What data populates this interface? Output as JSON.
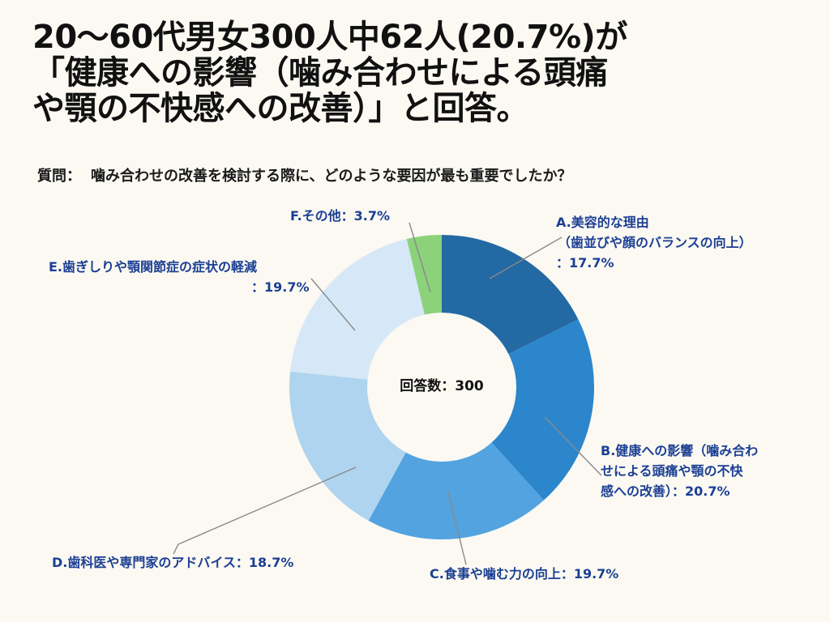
{
  "headline": {
    "line1": "20〜60代男女300人中62人(20.7%)が",
    "line2": "「健康への影響（噛み合わせによる頭痛",
    "line3": "や顎の不快感への改善）」と回答。"
  },
  "question": {
    "prefix": "質問：",
    "text": "噛み合わせの改善を検討する際に、どのような要因が最も重要でしたか？"
  },
  "chart_data": {
    "type": "pie",
    "donut": true,
    "center_label": "回答数：300",
    "total_responses": 300,
    "slices": [
      {
        "key": "A",
        "label_lines": [
          "A.美容的な理由",
          "（歯並びや顔のバランスの向上）",
          "：17.7%"
        ],
        "value": 17.7,
        "color": "#2369a4"
      },
      {
        "key": "B",
        "label_lines": [
          "B.健康への影響（噛み合わ",
          "せによる頭痛や顎の不快",
          "感への改善）：20.7%"
        ],
        "value": 20.7,
        "color": "#2b86cb"
      },
      {
        "key": "C",
        "label_lines": [
          "C.食事や噛む力の向上：19.7%"
        ],
        "value": 19.7,
        "color": "#52a3e0"
      },
      {
        "key": "D",
        "label_lines": [
          "D.歯科医や専門家のアドバイス：18.7%"
        ],
        "value": 18.7,
        "color": "#aed4ef"
      },
      {
        "key": "E",
        "label_lines": [
          "E.歯ぎしりや顎関節症の症状の軽減",
          "：19.7%"
        ],
        "value": 19.7,
        "color": "#d6e8f7"
      },
      {
        "key": "F",
        "label_lines": [
          "F.その他：3.7%"
        ],
        "value": 3.7,
        "color": "#8bd27a"
      }
    ]
  }
}
